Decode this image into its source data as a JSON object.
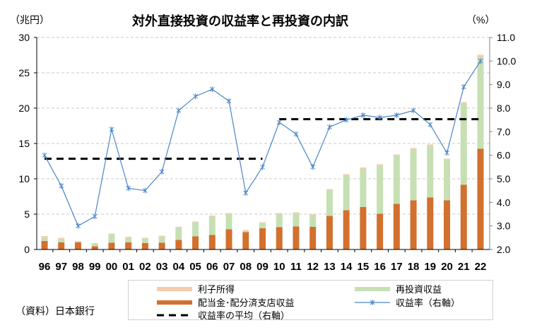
{
  "chart_data": {
    "type": "bar",
    "title": "対外直接投資の収益率と再投資の内訳",
    "ylabel_left": "（兆円）",
    "ylabel_right": "（%）",
    "source": "（資料）日本銀行",
    "categories": [
      "96",
      "97",
      "98",
      "99",
      "00",
      "01",
      "02",
      "03",
      "04",
      "05",
      "06",
      "07",
      "08",
      "09",
      "10",
      "11",
      "12",
      "13",
      "14",
      "15",
      "16",
      "17",
      "18",
      "19",
      "20",
      "21",
      "22"
    ],
    "y_left": {
      "min": 0,
      "max": 30,
      "ticks": [
        "0",
        "5",
        "10",
        "15",
        "20",
        "25",
        "30"
      ]
    },
    "y_right": {
      "min": 2.0,
      "max": 11.0,
      "ticks": [
        "2.0",
        "3.0",
        "4.0",
        "5.0",
        "6.0",
        "7.0",
        "8.0",
        "9.0",
        "10.0",
        "11.0"
      ]
    },
    "grid": true,
    "series": [
      {
        "name": "配当金･配分済支店収益",
        "kind": "stacked-bar",
        "color": "#D2702E",
        "values": [
          1.2,
          1.0,
          1.0,
          0.45,
          0.95,
          1.0,
          0.9,
          0.95,
          1.35,
          1.85,
          2.05,
          2.85,
          2.45,
          3.0,
          3.15,
          3.25,
          3.2,
          4.75,
          5.55,
          6.0,
          5.05,
          6.45,
          6.95,
          7.35,
          6.95,
          9.15,
          14.25
        ]
      },
      {
        "name": "再投資収益",
        "kind": "stacked-bar",
        "color": "#C6E0B4",
        "values": [
          0.5,
          0.4,
          0.0,
          0.4,
          1.2,
          0.6,
          0.65,
          0.9,
          1.7,
          2.0,
          2.6,
          2.15,
          0.2,
          0.75,
          1.85,
          1.9,
          1.7,
          3.7,
          4.9,
          5.4,
          6.8,
          6.9,
          7.2,
          7.3,
          5.7,
          11.5,
          13.0
        ]
      },
      {
        "name": "利子所得",
        "kind": "stacked-bar",
        "color": "#F8CBAD",
        "values": [
          0.2,
          0.25,
          0.2,
          0.05,
          0.1,
          0.2,
          0.1,
          0.1,
          0.15,
          0.1,
          0.15,
          0.15,
          0.1,
          0.1,
          0.15,
          0.1,
          0.1,
          0.1,
          0.2,
          0.2,
          0.2,
          0.1,
          0.2,
          0.2,
          0.2,
          0.2,
          0.3
        ]
      },
      {
        "name": "収益率（右軸）",
        "kind": "line",
        "axis": "right",
        "color": "#4A86C8",
        "values": [
          6.0,
          4.7,
          3.0,
          3.4,
          7.1,
          4.6,
          4.5,
          5.3,
          7.9,
          8.5,
          8.8,
          8.3,
          4.4,
          5.5,
          7.4,
          6.9,
          5.5,
          7.2,
          7.5,
          7.7,
          7.6,
          7.7,
          7.9,
          7.3,
          6.1,
          8.9,
          10.0
        ]
      },
      {
        "name": "収益率の平均（右軸）",
        "kind": "dashed-average",
        "axis": "right",
        "color": "#000000",
        "segments": [
          {
            "from": "96",
            "to": "09",
            "value": 5.85
          },
          {
            "from": "10",
            "to": "22",
            "value": 7.53
          }
        ]
      }
    ],
    "legend": {
      "placement": "bottom",
      "items": [
        "利子所得",
        "再投資収益",
        "配当金･配分済支店収益",
        "収益率（右軸）",
        "収益率の平均（右軸）"
      ]
    }
  }
}
